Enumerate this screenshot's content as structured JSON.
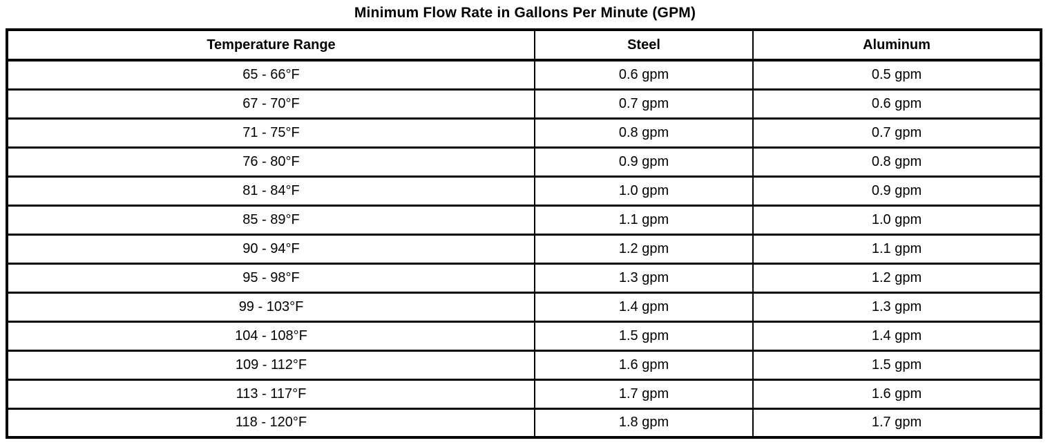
{
  "title": "Minimum Flow Rate in Gallons Per Minute (GPM)",
  "table": {
    "columns": [
      "Temperature Range",
      "Steel",
      "Aluminum"
    ],
    "rows": [
      {
        "temperature_range": "65 - 66°F",
        "steel": "0.6 gpm",
        "aluminum": "0.5 gpm"
      },
      {
        "temperature_range": "67 - 70°F",
        "steel": "0.7 gpm",
        "aluminum": "0.6 gpm"
      },
      {
        "temperature_range": "71 - 75°F",
        "steel": "0.8 gpm",
        "aluminum": "0.7 gpm"
      },
      {
        "temperature_range": "76 - 80°F",
        "steel": "0.9 gpm",
        "aluminum": "0.8 gpm"
      },
      {
        "temperature_range": "81 - 84°F",
        "steel": "1.0 gpm",
        "aluminum": "0.9 gpm"
      },
      {
        "temperature_range": "85 - 89°F",
        "steel": "1.1 gpm",
        "aluminum": "1.0 gpm"
      },
      {
        "temperature_range": "90 - 94°F",
        "steel": "1.2 gpm",
        "aluminum": "1.1 gpm"
      },
      {
        "temperature_range": "95 - 98°F",
        "steel": "1.3 gpm",
        "aluminum": "1.2 gpm"
      },
      {
        "temperature_range": "99 - 103°F",
        "steel": "1.4 gpm",
        "aluminum": "1.3 gpm"
      },
      {
        "temperature_range": "104 - 108°F",
        "steel": "1.5 gpm",
        "aluminum": "1.4 gpm"
      },
      {
        "temperature_range": "109 - 112°F",
        "steel": "1.6 gpm",
        "aluminum": "1.5 gpm"
      },
      {
        "temperature_range": "113 - 117°F",
        "steel": "1.7 gpm",
        "aluminum": "1.6 gpm"
      },
      {
        "temperature_range": "118 - 120°F",
        "steel": "1.8 gpm",
        "aluminum": "1.7 gpm"
      }
    ]
  },
  "colors": {
    "border": "#000000",
    "background": "#ffffff",
    "text": "#000000"
  }
}
